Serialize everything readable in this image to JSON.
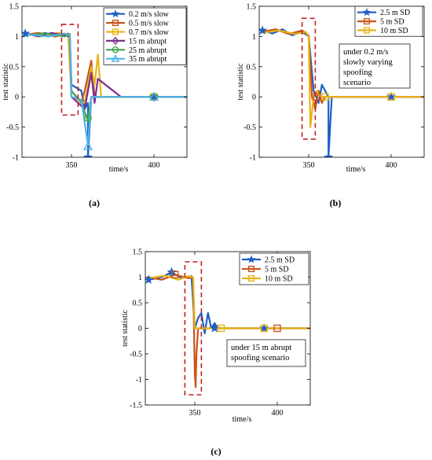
{
  "chart_data": [
    {
      "type": "line",
      "caption": "(a)",
      "xlabel": "time/s",
      "ylabel": "test statistic",
      "xlim": [
        320,
        420
      ],
      "ylim": [
        -1,
        1.5
      ],
      "xticks": [
        "350",
        "400"
      ],
      "yticks": [
        "-1",
        "-0.5",
        "0",
        "0.5",
        "1",
        "1.5"
      ],
      "grid": false,
      "legend_position": "top-right",
      "highlight_box": {
        "x": [
          344,
          354
        ],
        "y": [
          -0.3,
          1.2
        ]
      },
      "series": [
        {
          "name": "0.2 m/s slow",
          "color": "#1f5fc4",
          "marker": "star",
          "x": [
            322,
            328,
            334,
            340,
            346,
            349,
            350,
            356,
            358,
            360,
            360,
            362,
            380,
            400,
            420
          ],
          "y": [
            1.05,
            1.02,
            1.06,
            1.01,
            1.04,
            1.0,
            0.2,
            0.1,
            -0.2,
            -0.1,
            -1.0,
            0.0,
            0.0,
            0.0,
            0.0
          ],
          "markers_x": [
            322,
            360,
            400
          ],
          "markers_y": [
            1.05,
            -1.0,
            0.0
          ]
        },
        {
          "name": "0.5 m/s slow",
          "color": "#c8541a",
          "marker": "square",
          "x": [
            322,
            330,
            340,
            348,
            350,
            356,
            358,
            362,
            364,
            380,
            400,
            420
          ],
          "y": [
            1.03,
            1.06,
            1.0,
            1.05,
            0.1,
            -0.1,
            0.1,
            0.6,
            0.0,
            0.0,
            0.0,
            0.0
          ],
          "markers_x": [
            400
          ],
          "markers_y": [
            0.0
          ]
        },
        {
          "name": "0.7 m/s slow",
          "color": "#e8b417",
          "marker": "square",
          "x": [
            322,
            332,
            342,
            348,
            350,
            358,
            362,
            364,
            366,
            368,
            380,
            400,
            420
          ],
          "y": [
            1.04,
            1.0,
            1.06,
            1.02,
            0.0,
            -0.1,
            0.5,
            0.2,
            0.7,
            0.0,
            0.0,
            0.0,
            0.0
          ],
          "markers_x": [
            400
          ],
          "markers_y": [
            0.0
          ]
        },
        {
          "name": "15 m abrupt",
          "color": "#7e2f8e",
          "marker": "diamond",
          "x": [
            322,
            330,
            338,
            346,
            349,
            350,
            358,
            362,
            364,
            366,
            380,
            400,
            420
          ],
          "y": [
            1.05,
            1.0,
            1.06,
            1.02,
            1.0,
            0.0,
            -0.2,
            0.4,
            -0.1,
            0.3,
            0.0,
            0.0,
            0.0
          ],
          "markers_x": [
            400
          ],
          "markers_y": [
            0.0
          ]
        },
        {
          "name": "25 m abrupt",
          "color": "#3fa64e",
          "marker": "circle",
          "x": [
            322,
            334,
            346,
            349,
            350,
            356,
            360,
            362,
            380,
            400,
            420
          ],
          "y": [
            1.02,
            1.05,
            1.0,
            1.04,
            0.1,
            -0.1,
            -0.4,
            0.0,
            0.0,
            0.0,
            0.0
          ],
          "markers_x": [
            360,
            400
          ],
          "markers_y": [
            -0.35,
            0.0
          ]
        },
        {
          "name": "35 m abrupt",
          "color": "#4fb3e8",
          "marker": "triangle",
          "x": [
            322,
            336,
            346,
            349,
            350,
            356,
            360,
            362,
            380,
            400,
            420
          ],
          "y": [
            1.04,
            1.0,
            1.05,
            1.02,
            0.0,
            -0.05,
            -0.8,
            0.0,
            0.0,
            0.0,
            0.0
          ],
          "markers_x": [
            360,
            400
          ],
          "markers_y": [
            -0.82,
            0.0
          ]
        }
      ]
    },
    {
      "type": "line",
      "caption": "(b)",
      "xlabel": "time/s",
      "ylabel": "test statistic",
      "xlim": [
        320,
        420
      ],
      "ylim": [
        -1,
        1.5
      ],
      "xticks": [
        "350",
        "400"
      ],
      "yticks": [
        "-1",
        "-0.5",
        "0",
        "0.5",
        "1",
        "1.5"
      ],
      "grid": false,
      "legend_position": "top-right",
      "annotation": [
        "under 0.2 m/s",
        "slowly varying",
        "spoofing",
        "scenario"
      ],
      "highlight_box": {
        "x": [
          346,
          354
        ],
        "y": [
          -0.7,
          1.3
        ]
      },
      "series": [
        {
          "name": "2.5 m SD",
          "color": "#1f5fc4",
          "marker": "star",
          "x": [
            322,
            328,
            334,
            340,
            346,
            350,
            353,
            356,
            358,
            360,
            362,
            362,
            364,
            380,
            400,
            420
          ],
          "y": [
            1.1,
            1.05,
            1.12,
            1.02,
            1.08,
            1.0,
            0.1,
            -0.1,
            0.2,
            0.1,
            0.0,
            -1.0,
            0.0,
            0.0,
            0.0,
            0.0
          ],
          "markers_x": [
            322,
            362,
            400
          ],
          "markers_y": [
            1.1,
            -1.0,
            0.0
          ]
        },
        {
          "name": "5 m SD",
          "color": "#c8541a",
          "marker": "square",
          "x": [
            322,
            330,
            338,
            346,
            350,
            352,
            354,
            356,
            358,
            360,
            380,
            400,
            420
          ],
          "y": [
            1.08,
            1.12,
            1.04,
            1.1,
            1.02,
            0.0,
            -0.2,
            0.1,
            -0.1,
            0.0,
            0.0,
            0.0,
            0.0
          ],
          "markers_x": [
            355,
            400
          ],
          "markers_y": [
            0.0,
            0.0
          ]
        },
        {
          "name": "10 m SD",
          "color": "#e8b417",
          "marker": "square",
          "x": [
            322,
            332,
            342,
            348,
            350,
            351,
            353,
            355,
            357,
            360,
            380,
            400,
            420
          ],
          "y": [
            1.06,
            1.1,
            1.04,
            1.08,
            1.0,
            -0.5,
            0.0,
            0.1,
            0.0,
            0.0,
            0.0,
            0.0,
            0.0
          ],
          "markers_x": [
            360,
            400
          ],
          "markers_y": [
            0.0,
            0.0
          ]
        }
      ]
    },
    {
      "type": "line",
      "caption": "(c)",
      "xlabel": "time/s",
      "ylabel": "test statistic",
      "xlim": [
        320,
        420
      ],
      "ylim": [
        -1.5,
        1.5
      ],
      "xticks": [
        "350",
        "400"
      ],
      "yticks": [
        "-1.5",
        "-1",
        "-0.5",
        "0",
        "0.5",
        "1",
        "1.5"
      ],
      "grid": false,
      "legend_position": "top-right",
      "annotation": [
        "under 15 m abrupt",
        "spoofing scenario"
      ],
      "highlight_box": {
        "x": [
          344,
          354
        ],
        "y": [
          -1.3,
          1.3
        ]
      },
      "series": [
        {
          "name": "2.5 m SD",
          "color": "#1f5fc4",
          "marker": "star",
          "x": [
            322,
            330,
            336,
            342,
            348,
            350,
            352,
            354,
            356,
            358,
            360,
            362,
            364,
            380,
            400,
            420
          ],
          "y": [
            0.95,
            1.0,
            1.1,
            0.98,
            1.02,
            0.0,
            0.2,
            0.3,
            -0.1,
            0.3,
            0.0,
            0.1,
            0.0,
            0.0,
            0.0,
            0.0
          ],
          "markers_x": [
            322,
            336,
            362,
            392
          ],
          "markers_y": [
            0.95,
            1.1,
            0.0,
            0.0
          ]
        },
        {
          "name": "5 m SD",
          "color": "#c8541a",
          "marker": "square",
          "x": [
            322,
            330,
            338,
            346,
            349,
            350,
            350.5,
            351,
            352,
            360,
            380,
            400,
            420
          ],
          "y": [
            1.0,
            0.95,
            1.05,
            0.98,
            1.0,
            -0.9,
            -1.15,
            -0.5,
            0.0,
            0.0,
            0.0,
            0.0,
            0.0
          ],
          "markers_x": [
            338,
            400
          ],
          "markers_y": [
            1.05,
            0.0
          ]
        },
        {
          "name": "10 m SD",
          "color": "#e8b417",
          "marker": "square",
          "x": [
            322,
            332,
            340,
            346,
            349,
            350,
            352,
            360,
            380,
            400,
            420
          ],
          "y": [
            0.98,
            1.03,
            0.95,
            1.02,
            1.0,
            0.0,
            0.0,
            0.0,
            0.0,
            0.0,
            0.0
          ],
          "markers_x": [
            366,
            392
          ],
          "markers_y": [
            0.0,
            0.0
          ]
        }
      ]
    }
  ]
}
